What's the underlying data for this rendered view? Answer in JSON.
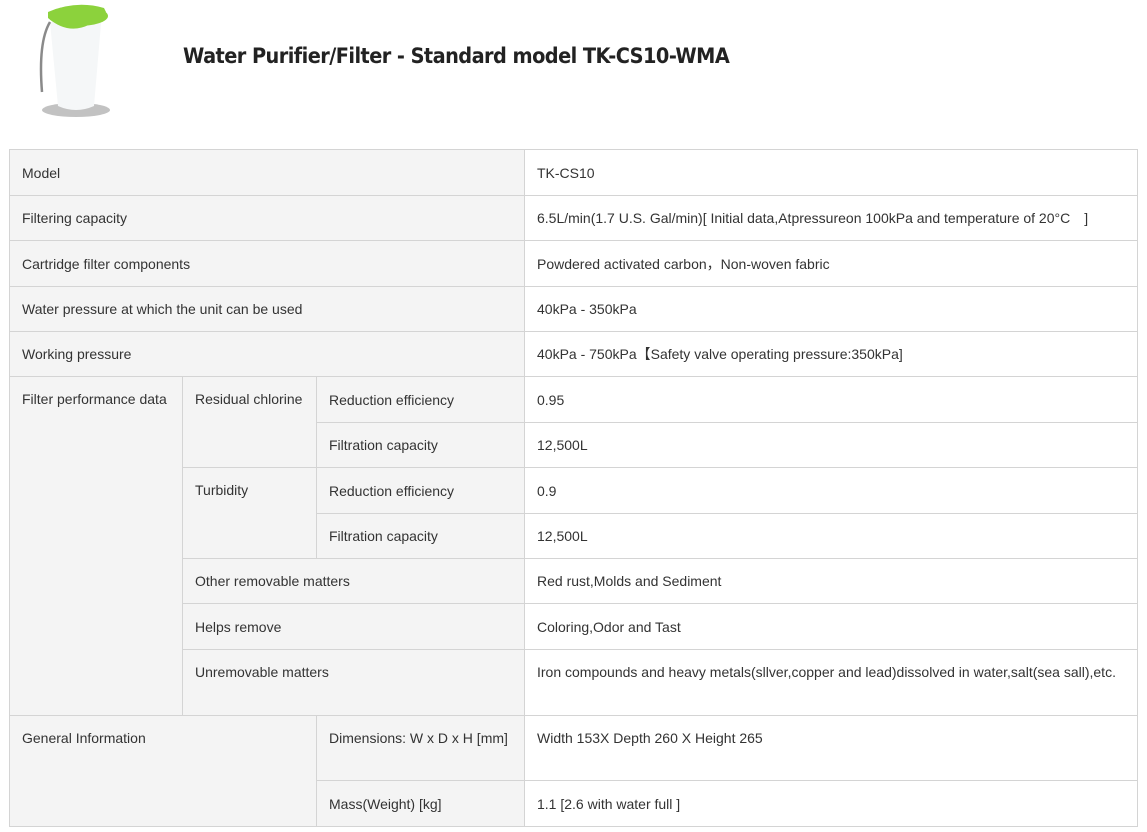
{
  "header": {
    "title": "Water Purifier/Filter - Standard model TK-CS10-WMA",
    "product_image": "water-purifier-product-photo",
    "colors": {
      "accent_green": "#8cd23c",
      "label_bg": "#f4f4f4",
      "border": "#d4d4d4"
    }
  },
  "specs": {
    "model": {
      "label": "Model",
      "value": "TK-CS10"
    },
    "filtering_capacity": {
      "label": "Filtering capacity",
      "value": "6.5L/min(1.7 U.S. Gal/min)[ Initial data,Atpressureon 100kPa and temperature of 20°C　]"
    },
    "cartridge": {
      "label": "Cartridge filter components",
      "value": "Powdered activated carbon，Non-woven fabric"
    },
    "water_pressure": {
      "label": "Water pressure at which the unit can be used",
      "value": "40kPa - 350kPa"
    },
    "working_pressure": {
      "label": "Working pressure",
      "value": "40kPa - 750kPa【Safety valve operating pressure:350kPa]"
    },
    "performance": {
      "label": "Filter performance data",
      "residual_chlorine": {
        "label": "Residual chlorine",
        "reduction_label": "Reduction efficiency",
        "reduction_value": "0.95",
        "capacity_label": "Filtration capacity",
        "capacity_value": "12,500L"
      },
      "turbidity": {
        "label": "Turbidity",
        "reduction_label": "Reduction efficiency",
        "reduction_value": "0.9",
        "capacity_label": "Filtration capacity",
        "capacity_value": "12,500L"
      },
      "other": {
        "label": "Other removable matters",
        "value": "Red rust,Molds and Sediment"
      },
      "helps": {
        "label": "Helps remove",
        "value": "Coloring,Odor and Tast"
      },
      "unremovable": {
        "label": "Unremovable matters",
        "value": "Iron compounds and heavy metals(sllver,copper and lead)dissolved in water,salt(sea sall),etc."
      }
    },
    "general": {
      "label": "General Information",
      "dimensions_label": "Dimensions: W x D x H [mm]",
      "dimensions_value": "Width 153X Depth 260 X Height 265",
      "mass_label": "Mass(Weight) [kg]",
      "mass_value": "1.1 [2.6 with water full ]"
    }
  }
}
